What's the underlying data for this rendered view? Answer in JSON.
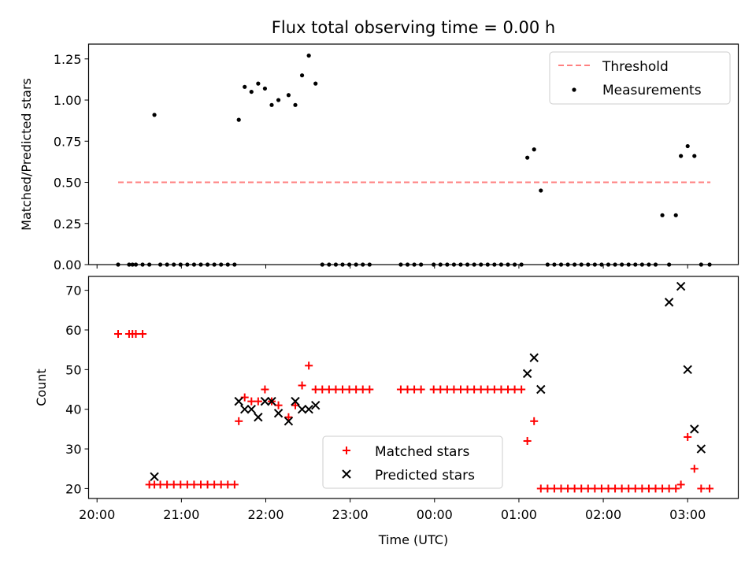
{
  "title": "Flux total observing time = 0.00 h",
  "x_tick_labels": [
    "20:00",
    "21:00",
    "22:00",
    "23:00",
    "00:00",
    "01:00",
    "02:00",
    "03:00"
  ],
  "x_label": "Time (UTC)",
  "colors": {
    "threshold": "#ff8080",
    "measurement": "#000000",
    "matched": "#ff0000",
    "predicted": "#000000"
  },
  "chart_data": [
    {
      "type": "scatter",
      "panel": "top",
      "ylabel": "Matched/Predicted stars",
      "xlabel": "",
      "x_unit": "hours since 20:00 UTC",
      "ylim": [
        0.0,
        1.34
      ],
      "xlim": [
        -0.1,
        7.6
      ],
      "y_tick_labels": [
        "0.00",
        "0.25",
        "0.50",
        "0.75",
        "1.00",
        "1.25"
      ],
      "y_ticks": [
        0,
        0.25,
        0.5,
        0.75,
        1.0,
        1.25
      ],
      "legend_position": "top-right",
      "threshold": {
        "name": "Threshold",
        "y": 0.5,
        "x": [
          0.25,
          7.27
        ]
      },
      "series": [
        {
          "name": "Measurements",
          "x": [
            0.25,
            0.38,
            0.42,
            0.46,
            0.54,
            0.62,
            0.68,
            0.75,
            0.83,
            0.91,
            0.99,
            1.07,
            1.15,
            1.23,
            1.31,
            1.39,
            1.47,
            1.55,
            1.63,
            1.68,
            1.75,
            1.83,
            1.91,
            1.99,
            2.07,
            2.15,
            2.27,
            2.35,
            2.43,
            2.51,
            2.59,
            2.67,
            2.75,
            2.83,
            2.91,
            2.99,
            3.07,
            3.15,
            3.23,
            3.6,
            3.68,
            3.76,
            3.84,
            3.99,
            4.07,
            4.15,
            4.23,
            4.31,
            4.39,
            4.47,
            4.55,
            4.63,
            4.71,
            4.79,
            4.87,
            4.95,
            5.03,
            5.1,
            5.18,
            5.26,
            5.34,
            5.42,
            5.5,
            5.58,
            5.66,
            5.74,
            5.82,
            5.9,
            5.98,
            6.06,
            6.14,
            6.22,
            6.3,
            6.38,
            6.46,
            6.54,
            6.62,
            6.7,
            6.78,
            6.86,
            6.92,
            7.0,
            7.08,
            7.16,
            7.26
          ],
          "y": [
            0,
            0,
            0,
            0,
            0,
            0,
            0.91,
            0,
            0,
            0,
            0,
            0,
            0,
            0,
            0,
            0,
            0,
            0,
            0,
            0.88,
            1.08,
            1.05,
            1.1,
            1.07,
            0.97,
            1.0,
            1.03,
            0.97,
            1.15,
            1.27,
            1.1,
            0,
            0,
            0,
            0,
            0,
            0,
            0,
            0,
            0,
            0,
            0,
            0,
            0,
            0,
            0,
            0,
            0,
            0,
            0,
            0,
            0,
            0,
            0,
            0,
            0,
            0,
            0.65,
            0.7,
            0.45,
            0,
            0,
            0,
            0,
            0,
            0,
            0,
            0,
            0,
            0,
            0,
            0,
            0,
            0,
            0,
            0,
            0,
            0.3,
            0,
            0.3,
            0.66,
            0.72,
            0.66,
            0,
            0
          ]
        }
      ]
    },
    {
      "type": "scatter",
      "panel": "bottom",
      "ylabel": "Count",
      "xlabel": "Time (UTC)",
      "x_unit": "hours since 20:00 UTC",
      "ylim": [
        17.5,
        73.5
      ],
      "xlim": [
        -0.1,
        7.6
      ],
      "y_tick_labels": [
        "20",
        "30",
        "40",
        "50",
        "60",
        "70"
      ],
      "y_ticks": [
        20,
        30,
        40,
        50,
        60,
        70
      ],
      "legend_position": "lower center",
      "series": [
        {
          "name": "Matched stars",
          "marker": "plus",
          "x": [
            0.25,
            0.38,
            0.42,
            0.46,
            0.54,
            0.62,
            0.68,
            0.75,
            0.83,
            0.91,
            0.99,
            1.07,
            1.15,
            1.23,
            1.31,
            1.39,
            1.47,
            1.55,
            1.63,
            1.68,
            1.75,
            1.83,
            1.91,
            1.99,
            2.07,
            2.15,
            2.27,
            2.35,
            2.43,
            2.51,
            2.59,
            2.67,
            2.75,
            2.83,
            2.91,
            2.99,
            3.07,
            3.15,
            3.23,
            3.6,
            3.68,
            3.76,
            3.84,
            3.99,
            4.07,
            4.15,
            4.23,
            4.31,
            4.39,
            4.47,
            4.55,
            4.63,
            4.71,
            4.79,
            4.87,
            4.95,
            5.03,
            5.1,
            5.18,
            5.26,
            5.34,
            5.42,
            5.5,
            5.58,
            5.66,
            5.74,
            5.82,
            5.9,
            5.98,
            6.06,
            6.14,
            6.22,
            6.3,
            6.38,
            6.46,
            6.54,
            6.62,
            6.7,
            6.78,
            6.86,
            6.92,
            7.0,
            7.08,
            7.16,
            7.26
          ],
          "y": [
            59,
            59,
            59,
            59,
            59,
            21,
            21,
            21,
            21,
            21,
            21,
            21,
            21,
            21,
            21,
            21,
            21,
            21,
            21,
            37,
            43,
            42,
            42,
            45,
            42,
            41,
            38,
            41,
            46,
            51,
            45,
            45,
            45,
            45,
            45,
            45,
            45,
            45,
            45,
            45,
            45,
            45,
            45,
            45,
            45,
            45,
            45,
            45,
            45,
            45,
            45,
            45,
            45,
            45,
            45,
            45,
            45,
            32,
            37,
            20,
            20,
            20,
            20,
            20,
            20,
            20,
            20,
            20,
            20,
            20,
            20,
            20,
            20,
            20,
            20,
            20,
            20,
            20,
            20,
            20,
            21,
            33,
            25,
            20,
            20
          ]
        },
        {
          "name": "Predicted stars",
          "marker": "x",
          "x": [
            0.68,
            1.68,
            1.75,
            1.83,
            1.91,
            1.99,
            2.07,
            2.15,
            2.27,
            2.35,
            2.43,
            2.51,
            2.59,
            5.1,
            5.18,
            5.26,
            6.78,
            6.92,
            7.0,
            7.08,
            7.16
          ],
          "y": [
            23,
            42,
            40,
            40,
            38,
            42,
            42,
            39,
            37,
            42,
            40,
            40,
            41,
            49,
            53,
            45,
            67,
            71,
            50,
            35,
            30
          ]
        }
      ]
    }
  ]
}
